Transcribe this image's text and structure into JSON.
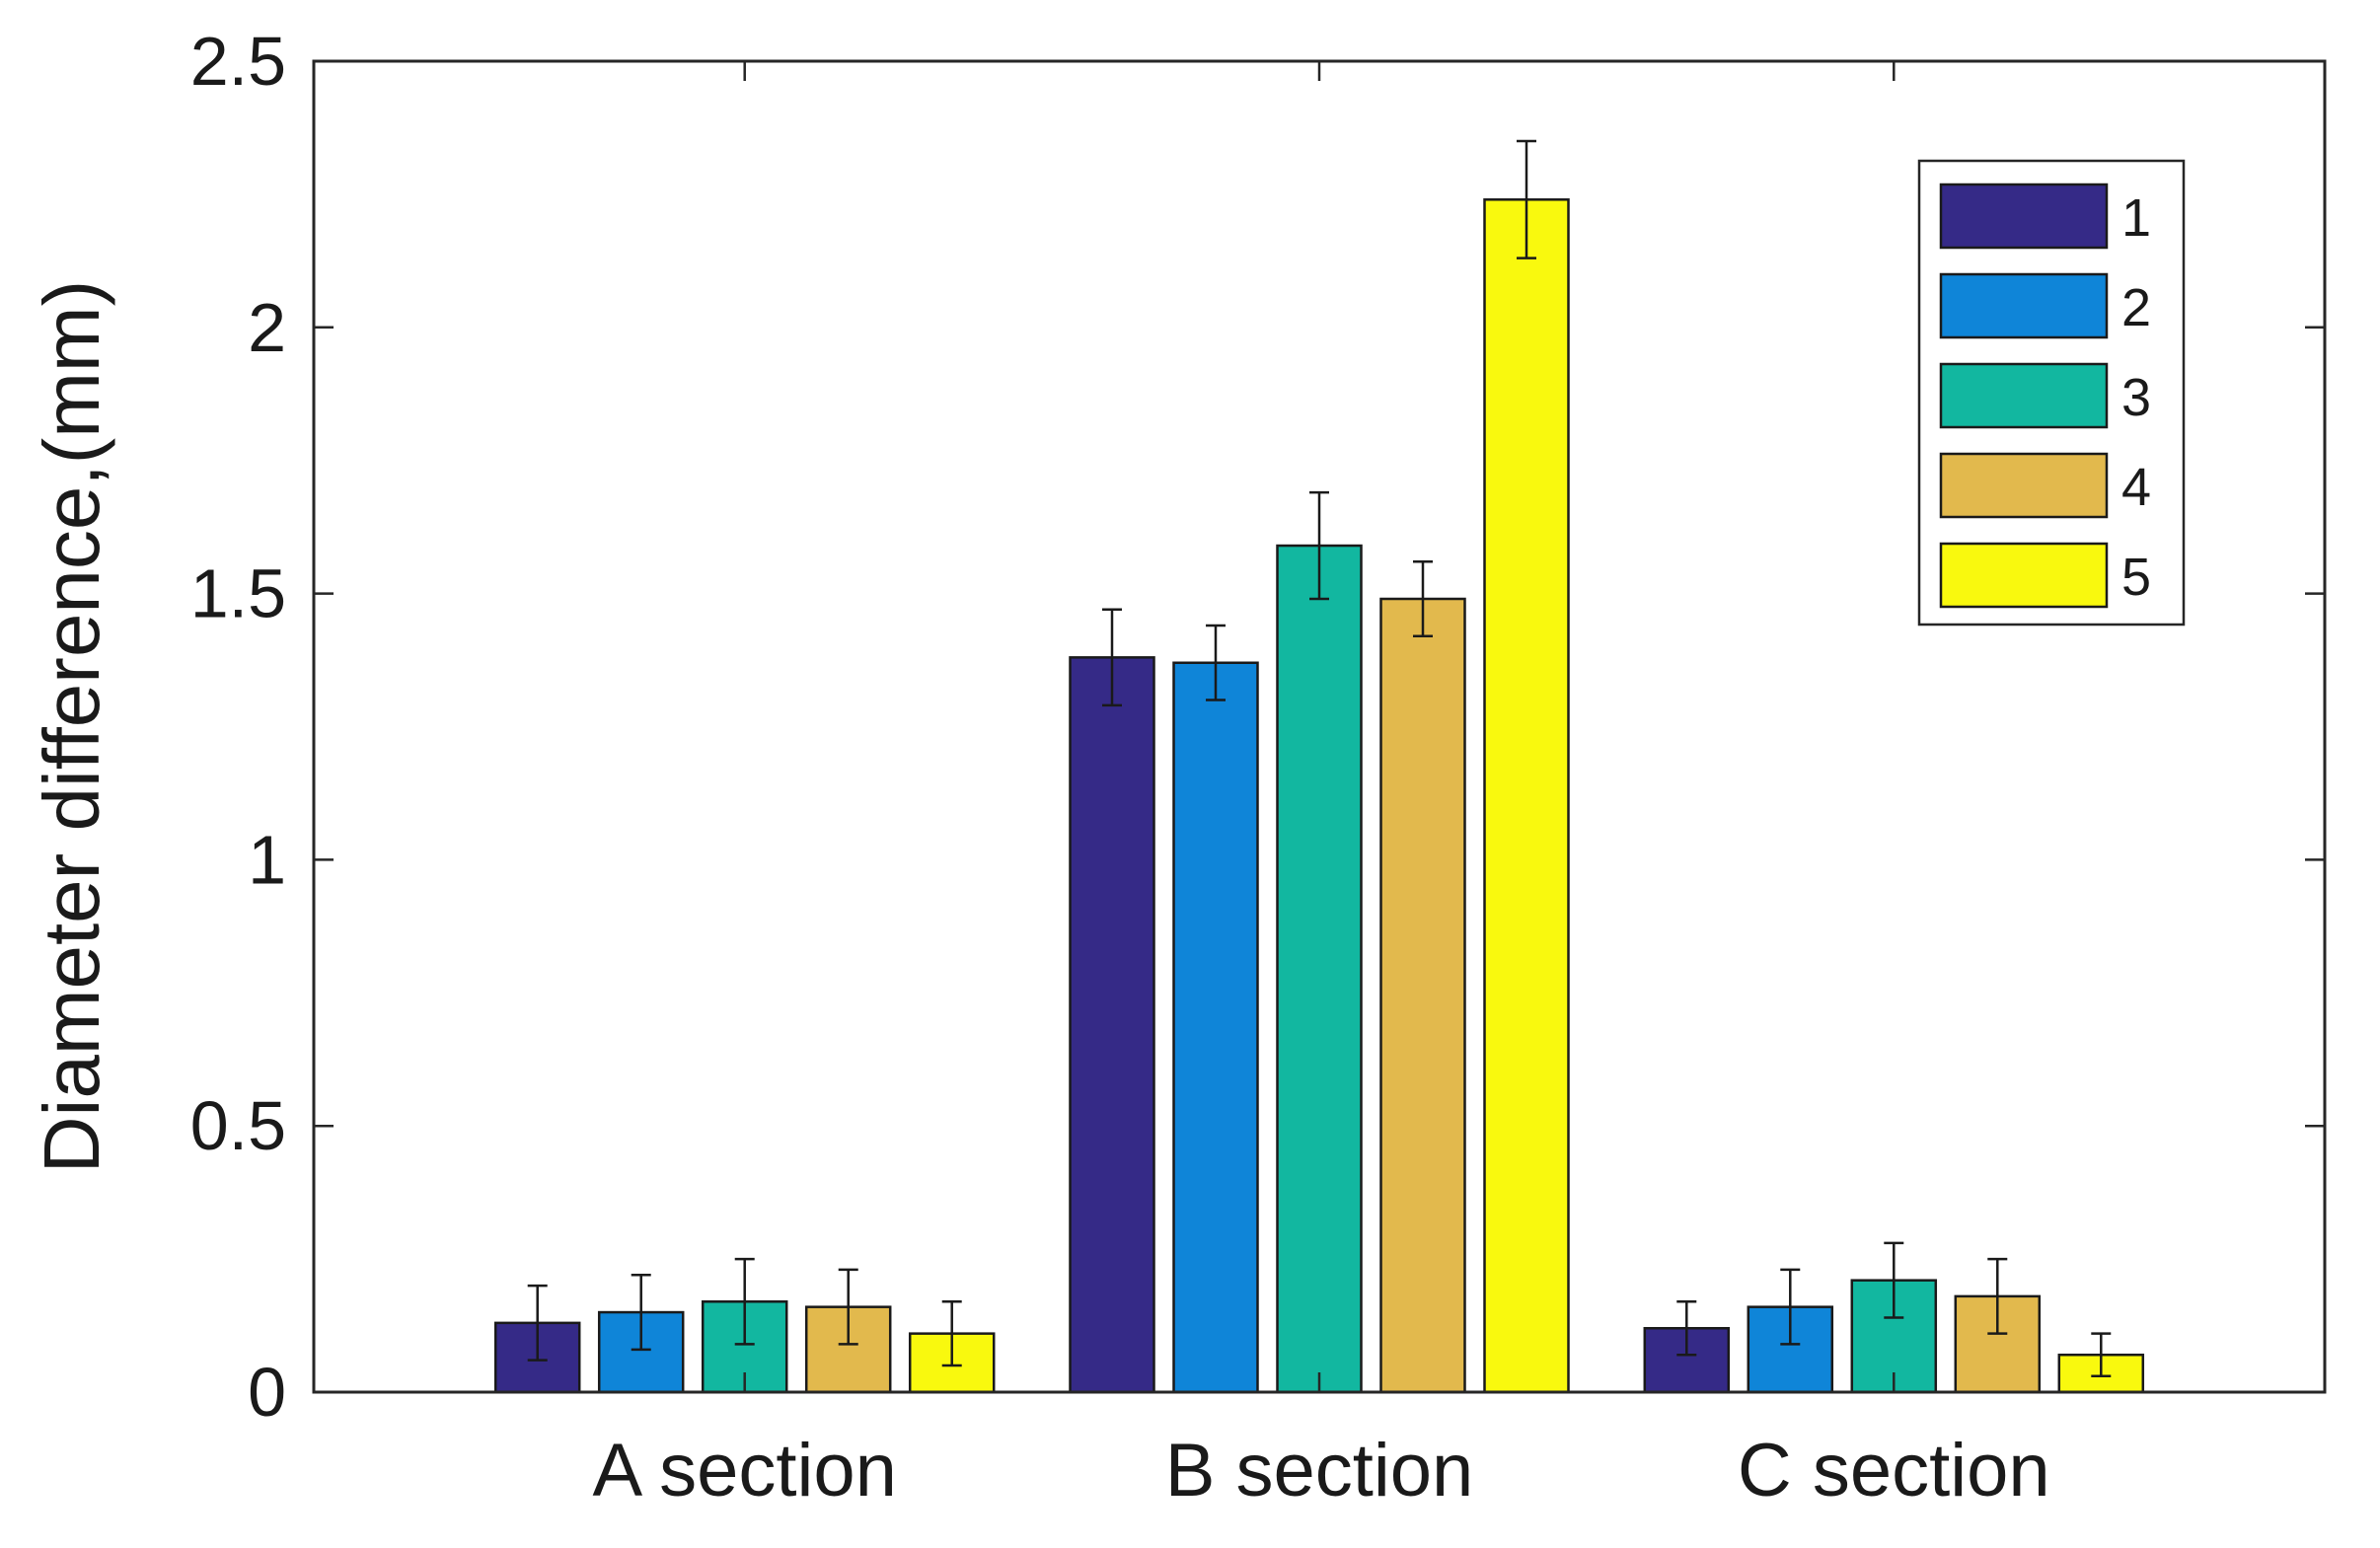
{
  "chart_data": {
    "type": "bar",
    "title": "",
    "xlabel": "",
    "ylabel": "Diameter difference,(mm)",
    "ylim": [
      0,
      2.5
    ],
    "yticks": [
      0,
      0.5,
      1,
      1.5,
      2,
      2.5
    ],
    "ytick_labels": [
      "0",
      "0.5",
      "1",
      "1.5",
      "2",
      "2.5"
    ],
    "categories": [
      "A section",
      "B section",
      "C section"
    ],
    "grid": false,
    "legend_position": "top-right",
    "series": [
      {
        "name": "1",
        "color": "#352A87",
        "values": [
          0.13,
          1.38,
          0.12
        ],
        "errors": [
          0.07,
          0.09,
          0.05
        ]
      },
      {
        "name": "2",
        "color": "#0F85D8",
        "values": [
          0.15,
          1.37,
          0.16
        ],
        "errors": [
          0.07,
          0.07,
          0.07
        ]
      },
      {
        "name": "3",
        "color": "#12B7A0",
        "values": [
          0.17,
          1.59,
          0.21
        ],
        "errors": [
          0.08,
          0.1,
          0.07
        ]
      },
      {
        "name": "4",
        "color": "#E2B94D",
        "values": [
          0.16,
          1.49,
          0.18
        ],
        "errors": [
          0.07,
          0.07,
          0.07
        ]
      },
      {
        "name": "5",
        "color": "#F9F90E",
        "values": [
          0.11,
          2.24,
          0.07
        ],
        "errors": [
          0.06,
          0.11,
          0.04
        ]
      }
    ]
  }
}
